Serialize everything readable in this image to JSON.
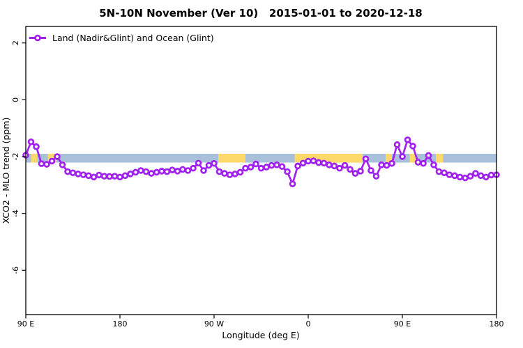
{
  "title": "5N-10N November (Ver 10)   2015-01-01 to 2020-12-18",
  "legend": {
    "label": "Land (Nadir&Glint) and Ocean (Glint)",
    "marker": "open-circle-on-line"
  },
  "axes": {
    "x_label": "Longitude (deg E)",
    "y_label": "XCO2 - MLO trend (ppm)"
  },
  "colors": {
    "series_purple": "#a021f0",
    "marker_fill": "#ffffff",
    "band_blue": "#a9c0da",
    "band_yellow": "#fdd96a",
    "axis_black": "#000000"
  },
  "chart_data": {
    "type": "line",
    "title": "5N-10N November (Ver 10)   2015-01-01 to 2020-12-18",
    "xlabel": "Longitude (deg E)",
    "ylabel": "XCO2 - MLO trend (ppm)",
    "grid": false,
    "legend_position": "top-left-inside",
    "ylim": [
      -7.56,
      2.58
    ],
    "y_ticks": [
      2,
      0,
      -2,
      -4,
      -6
    ],
    "x_axis": {
      "note": "longitude axis wraps eastward: 90E → 180 → 90W → 0 → 90E → 180",
      "total_span_deg": 450,
      "point_step_deg": 5,
      "ticks": [
        {
          "offset_deg": 0,
          "label": "90 E"
        },
        {
          "offset_deg": 90,
          "label": "180"
        },
        {
          "offset_deg": 180,
          "label": "90 W"
        },
        {
          "offset_deg": 270,
          "label": "0"
        },
        {
          "offset_deg": 360,
          "label": "90 E"
        },
        {
          "offset_deg": 450,
          "label": "180"
        }
      ]
    },
    "background_band": {
      "y_range": [
        -2.21,
        -1.9
      ],
      "base_color": "#a9c0da",
      "highlight_color": "#fdd96a",
      "yellow_segments_offset_deg": [
        [
          5,
          11
        ],
        [
          21,
          29
        ],
        [
          184,
          210
        ],
        [
          257,
          322
        ],
        [
          344,
          350
        ],
        [
          367,
          374
        ],
        [
          392,
          399
        ]
      ]
    },
    "series": [
      {
        "name": "Land (Nadir&Glint) and Ocean (Glint)",
        "color": "#a021f0",
        "marker": "open-circle",
        "values": [
          -1.95,
          -1.48,
          -1.65,
          -2.25,
          -2.27,
          -2.16,
          -2.0,
          -2.29,
          -2.53,
          -2.57,
          -2.61,
          -2.64,
          -2.67,
          -2.72,
          -2.65,
          -2.69,
          -2.7,
          -2.69,
          -2.72,
          -2.67,
          -2.61,
          -2.55,
          -2.49,
          -2.53,
          -2.59,
          -2.55,
          -2.51,
          -2.53,
          -2.47,
          -2.51,
          -2.45,
          -2.49,
          -2.41,
          -2.23,
          -2.49,
          -2.31,
          -2.24,
          -2.53,
          -2.59,
          -2.64,
          -2.61,
          -2.55,
          -2.41,
          -2.37,
          -2.26,
          -2.41,
          -2.37,
          -2.31,
          -2.29,
          -2.35,
          -2.53,
          -2.96,
          -2.33,
          -2.23,
          -2.16,
          -2.15,
          -2.21,
          -2.23,
          -2.29,
          -2.33,
          -2.41,
          -2.31,
          -2.45,
          -2.59,
          -2.51,
          -2.08,
          -2.49,
          -2.69,
          -2.29,
          -2.31,
          -2.24,
          -1.58,
          -2.0,
          -1.41,
          -1.63,
          -2.2,
          -2.24,
          -1.96,
          -2.29,
          -2.53,
          -2.57,
          -2.64,
          -2.67,
          -2.72,
          -2.75,
          -2.69,
          -2.59,
          -2.67,
          -2.72,
          -2.65,
          -2.64
        ]
      }
    ]
  }
}
